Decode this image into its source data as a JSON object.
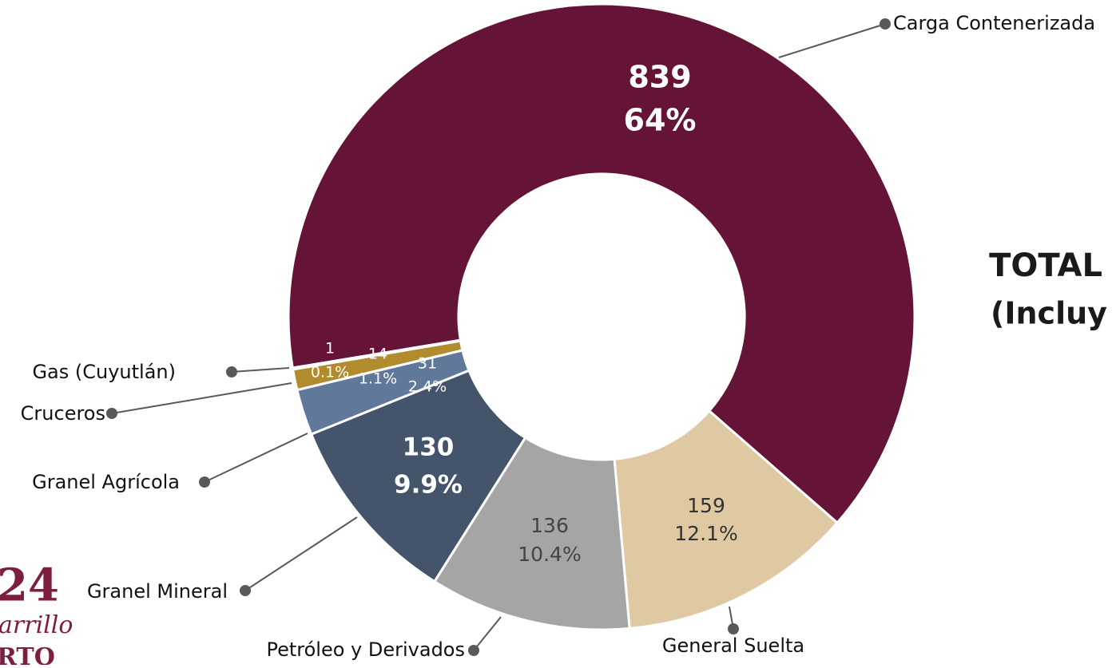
{
  "chart_data": {
    "type": "donut",
    "categories": [
      "Carga Contenerizada",
      "General Suelta",
      "Petróleo y Derivados",
      "Granel Mineral",
      "Granel Agrícola",
      "Cruceros",
      "Gas (Cuyutlán)"
    ],
    "values": [
      839,
      159,
      136,
      130,
      31,
      14,
      1
    ],
    "percentages": [
      64,
      12.1,
      10.4,
      9.9,
      2.4,
      1.1,
      0.1
    ],
    "percentage_labels": [
      "64%",
      "12.1%",
      "10.4%",
      "9.9%",
      "2.4%",
      "1.1%",
      "0.1%"
    ],
    "colors": [
      "#651336",
      "#dfc9a3",
      "#a5a5a5",
      "#44546a",
      "#60799a",
      "#b28b2f",
      "#c9a45a"
    ],
    "side_text": [
      "TOTAL",
      "(Incluy"
    ],
    "logo_text": [
      "24",
      "arrillo",
      "RTO"
    ]
  }
}
